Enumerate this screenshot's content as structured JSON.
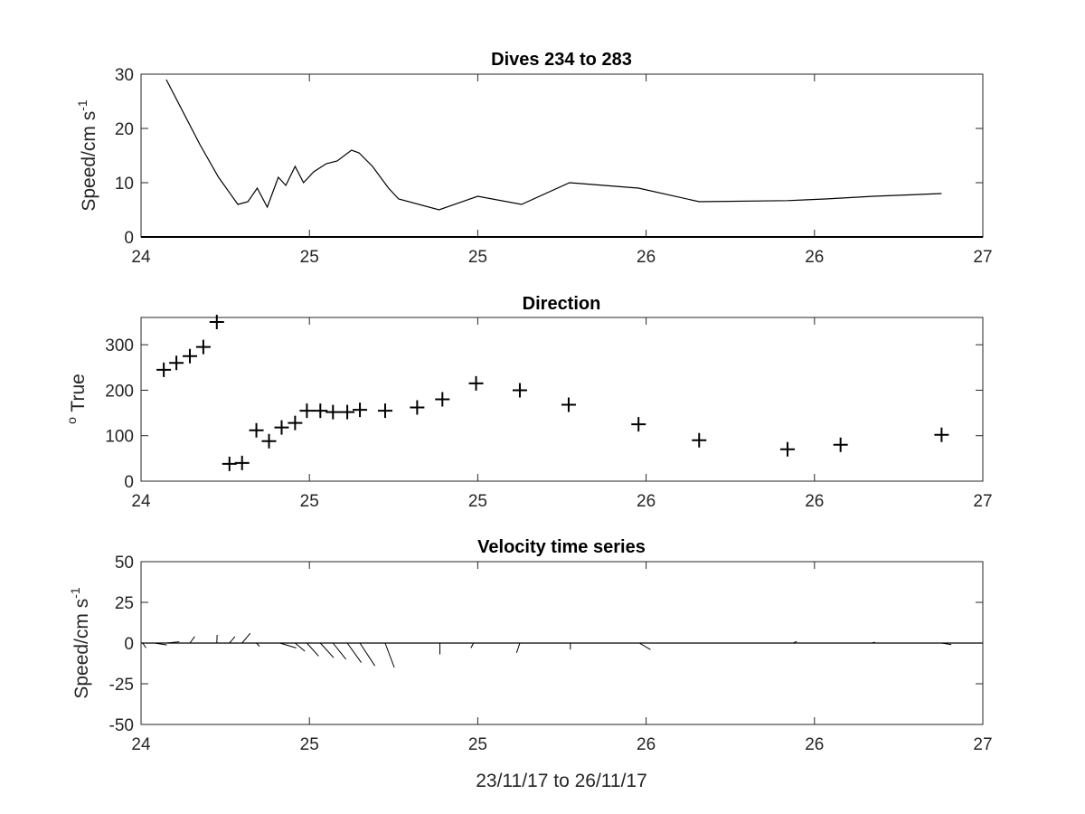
{
  "chart_data": [
    {
      "type": "line",
      "title": "Dives 234 to 283",
      "ylabel_main": "Speed/cm s",
      "ylabel_sup": "-1",
      "xlabel": "",
      "xlim": [
        0,
        1
      ],
      "ylim": [
        0,
        30
      ],
      "xtick_labels": [
        "24",
        "25",
        "25",
        "26",
        "26",
        "27"
      ],
      "yticks": [
        0,
        10,
        20,
        30
      ],
      "x": [
        0.03,
        0.07,
        0.092,
        0.115,
        0.127,
        0.138,
        0.15,
        0.163,
        0.172,
        0.183,
        0.193,
        0.205,
        0.22,
        0.233,
        0.25,
        0.259,
        0.275,
        0.294,
        0.306,
        0.354,
        0.4,
        0.452,
        0.509,
        0.591,
        0.663,
        0.768,
        0.813,
        0.87,
        0.951
      ],
      "values": [
        29,
        17,
        11,
        6,
        6.5,
        9,
        5.5,
        11,
        9.5,
        13,
        10,
        12,
        13.5,
        14,
        16,
        15.5,
        13,
        9,
        7,
        5,
        7.5,
        6,
        10,
        9,
        6.5,
        6.7,
        7,
        7.5,
        8
      ]
    },
    {
      "type": "scatter",
      "title": "Direction",
      "ylabel_sup": "o",
      "ylabel_main": " True",
      "xlabel": "",
      "xlim": [
        0,
        1
      ],
      "ylim": [
        0,
        360
      ],
      "xtick_labels": [
        "24",
        "25",
        "25",
        "26",
        "26",
        "27"
      ],
      "yticks": [
        0,
        100,
        200,
        300
      ],
      "x": [
        0.027,
        0.042,
        0.058,
        0.074,
        0.09,
        0.105,
        0.12,
        0.137,
        0.152,
        0.167,
        0.183,
        0.197,
        0.213,
        0.228,
        0.245,
        0.26,
        0.29,
        0.328,
        0.358,
        0.398,
        0.45,
        0.508,
        0.591,
        0.663,
        0.768,
        0.831,
        0.951
      ],
      "values": [
        245,
        260,
        275,
        295,
        350,
        38,
        40,
        112,
        88,
        118,
        128,
        155,
        155,
        152,
        152,
        157,
        155,
        162,
        180,
        215,
        200,
        168,
        125,
        90,
        70,
        80,
        102
      ]
    },
    {
      "type": "quiver",
      "title": "Velocity time series",
      "ylabel_main": "Speed/cm s",
      "ylabel_sup": "-1",
      "xlabel": "23/11/17 to 26/11/17",
      "xlim": [
        0,
        1
      ],
      "ylim": [
        -50,
        50
      ],
      "xtick_labels": [
        "24",
        "25",
        "25",
        "26",
        "26",
        "27"
      ],
      "yticks": [
        -50,
        -25,
        0,
        25,
        50
      ],
      "x": [
        0.002,
        0.016,
        0.03,
        0.058,
        0.09,
        0.105,
        0.12,
        0.137,
        0.165,
        0.183,
        0.197,
        0.213,
        0.228,
        0.245,
        0.26,
        0.29,
        0.355,
        0.395,
        0.45,
        0.51,
        0.592,
        0.775,
        0.868,
        0.951
      ],
      "u": [
        1.0,
        3.8,
        4.0,
        1.5,
        0.1,
        1.7,
        2.5,
        1.0,
        5.0,
        3.0,
        3.6,
        4.1,
        4.0,
        4.3,
        4.6,
        2.8,
        0.0,
        -0.8,
        -1.0,
        0.0,
        3.4,
        1.0,
        1.0,
        3.0
      ],
      "v": [
        -3.0,
        -1.2,
        0.8,
        4.0,
        5.0,
        4.0,
        6.0,
        -2.0,
        -3.0,
        -5.0,
        -8.0,
        -9.0,
        -10.0,
        -12.0,
        -14.0,
        -15.0,
        -7.0,
        -3.0,
        -6.0,
        -4.0,
        -4.0,
        1.0,
        0.5,
        -1.0
      ]
    }
  ]
}
